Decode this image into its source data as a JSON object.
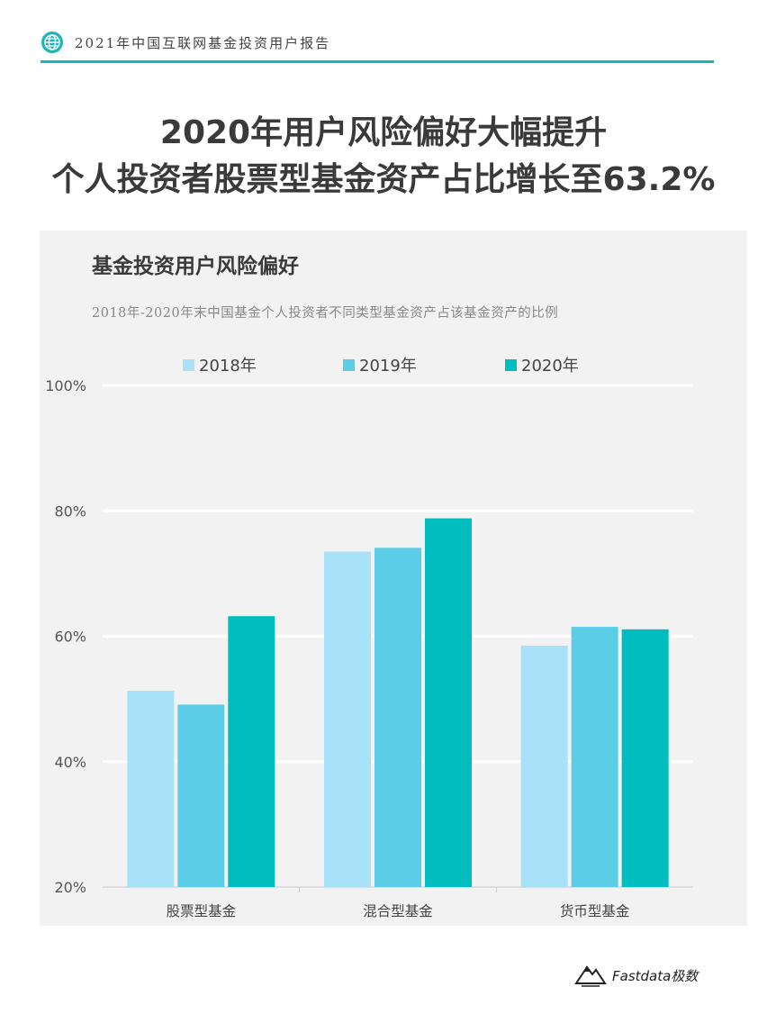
{
  "header": {
    "report_title": "2021年中国互联网基金投资用户报告",
    "icon": "globe-icon"
  },
  "headline": {
    "line1": "2020年用户风险偏好大幅提升",
    "line2": "个人投资者股票型基金资产占比增长至63.2%"
  },
  "footer": {
    "brand": "Fastdata极数",
    "icon": "mountain-logo-icon"
  },
  "colors": {
    "accent": "#1fb5b8",
    "s2018": "#a8e1f8",
    "s2019": "#5bcde6",
    "s2020": "#00bec0"
  },
  "chart_data": {
    "type": "bar",
    "title": "基金投资用户风险偏好",
    "subtitle": "2018年-2020年末中国基金个人投资者不同类型基金资产占该基金资产的比例",
    "categories": [
      "股票型基金",
      "混合型基金",
      "货币型基金"
    ],
    "series": [
      {
        "name": "2018年",
        "values": [
          51.3,
          73.5,
          58.5
        ]
      },
      {
        "name": "2019年",
        "values": [
          49.1,
          74.1,
          61.5
        ]
      },
      {
        "name": "2020年",
        "values": [
          63.2,
          78.8,
          61.1
        ]
      }
    ],
    "ylim": [
      20,
      100
    ],
    "yticks": [
      "20%",
      "40%",
      "60%",
      "80%",
      "100%"
    ],
    "grid": true,
    "legend": "top"
  }
}
